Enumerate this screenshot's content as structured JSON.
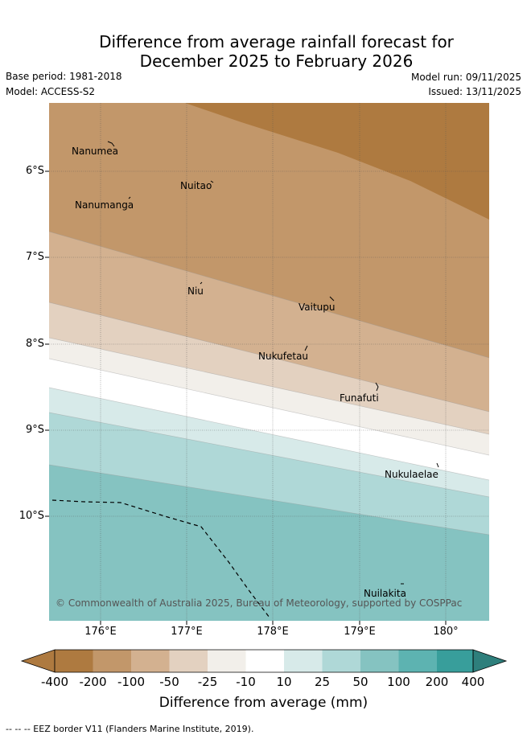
{
  "header": {
    "title_line1": "Difference from average rainfall forecast for",
    "title_line2": "December 2025 to February 2026",
    "base_period": "Base period: 1981-2018",
    "model": "Model: ACCESS-S2",
    "model_run": "Model run: 09/11/2025",
    "issued": "Issued: 13/11/2025"
  },
  "map": {
    "y_ticks": [
      "6°S",
      "7°S",
      "8°S",
      "9°S",
      "10°S"
    ],
    "x_ticks": [
      "176°E",
      "177°E",
      "178°E",
      "179°E",
      "180°"
    ],
    "islands": [
      "Nanumea",
      "Nuitao",
      "Nanumanga",
      "Niu",
      "Vaitupu",
      "Nukufetau",
      "Funafuti",
      "Nukulaelae",
      "Nuilakita"
    ],
    "copyright": "© Commonwealth of Australia 2025, Bureau of Meteorology, supported by COSPPac"
  },
  "colorbar": {
    "labels": [
      "-400",
      "-200",
      "-100",
      "-50",
      "-25",
      "-10",
      "10",
      "25",
      "50",
      "100",
      "200",
      "400"
    ],
    "colors": [
      "#ae7a40",
      "#c2976a",
      "#d3b190",
      "#e3d1c0",
      "#f2efea",
      "#ffffff",
      "#d7eae9",
      "#afd8d7",
      "#85c3c1",
      "#5db3b1",
      "#389e9b",
      "#2e7f7c"
    ],
    "title": "Difference from average (mm)"
  },
  "legend": {
    "eez_label": "-- -- -- EEZ border V11 (Flanders Marine Institute, 2019)."
  }
}
